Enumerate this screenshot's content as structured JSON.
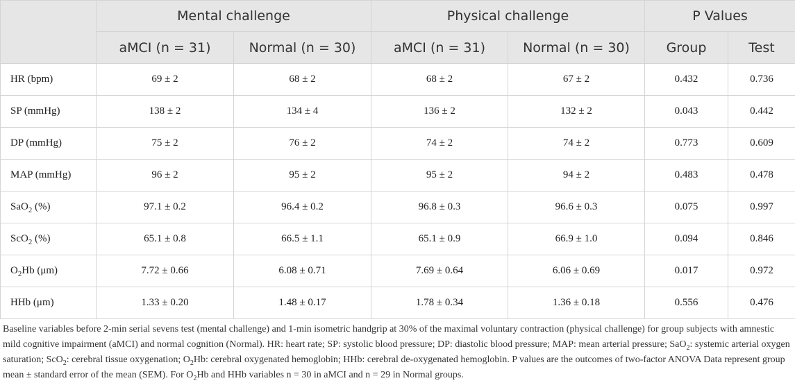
{
  "table": {
    "corner": "",
    "group_headers": [
      "Mental challenge",
      "Physical challenge",
      "P Values"
    ],
    "sub_headers": [
      "aMCI (n = 31)",
      "Normal (n = 30)",
      "aMCI (n = 31)",
      "Normal (n = 30)",
      "Group",
      "Test"
    ],
    "rows": [
      {
        "label": "HR (bpm)",
        "values": [
          "69 ± 2",
          "68 ± 2",
          "68 ± 2",
          "67 ± 2",
          "0.432",
          "0.736"
        ]
      },
      {
        "label": "SP (mmHg)",
        "values": [
          "138 ± 2",
          "134 ± 4",
          "136 ± 2",
          "132 ± 2",
          "0.043",
          "0.442"
        ]
      },
      {
        "label": "DP (mmHg)",
        "values": [
          "75 ± 2",
          "76 ± 2",
          "74 ± 2",
          "74 ± 2",
          "0.773",
          "0.609"
        ]
      },
      {
        "label": "MAP (mmHg)",
        "values": [
          "96 ± 2",
          "95 ± 2",
          "95 ± 2",
          "94 ± 2",
          "0.483",
          "0.478"
        ]
      },
      {
        "label": "SaO<sub>2</sub> (%)",
        "values": [
          "97.1 ± 0.2",
          "96.4 ± 0.2",
          "96.8 ± 0.3",
          "96.6 ± 0.3",
          "0.075",
          "0.997"
        ]
      },
      {
        "label": "ScO<sub>2</sub> (%)",
        "values": [
          "65.1 ± 0.8",
          "66.5 ± 1.1",
          "65.1 ± 0.9",
          "66.9 ± 1.0",
          "0.094",
          "0.846"
        ]
      },
      {
        "label": "O<sub>2</sub>Hb (μm)",
        "values": [
          "7.72 ± 0.66",
          "6.08 ± 0.71",
          "7.69 ± 0.64",
          "6.06 ± 0.69",
          "0.017",
          "0.972"
        ]
      },
      {
        "label": "HHb (μm)",
        "values": [
          "1.33 ± 0.20",
          "1.48 ± 0.17",
          "1.78 ± 0.34",
          "1.36 ± 0.18",
          "0.556",
          "0.476"
        ]
      }
    ]
  },
  "caption": "Baseline variables before 2-min serial sevens test (mental challenge) and 1-min isometric handgrip at 30% of the maximal voluntary contraction (physical challenge) for group subjects with amnestic mild cognitive impairment (aMCI) and normal cognition (Normal). HR: heart rate; SP: systolic blood pressure; DP: diastolic blood pressure; MAP: mean arterial pressure; SaO<sub>2</sub>: systemic arterial oxygen saturation; ScO<sub>2</sub>: cerebral tissue oxygenation; O<sub>2</sub>Hb: cerebral oxygenated hemoglobin; HHb: cerebral de-oxygenated hemoglobin. P values are the outcomes of two-factor ANOVA Data represent group mean ± standard error of the mean (SEM). For O<sub>2</sub>Hb and HHb variables n = 30 in aMCI and n = 29 in Normal groups.",
  "colors": {
    "header_bg": "#e6e6e6",
    "border": "#d4d4d4",
    "text": "#222222"
  }
}
